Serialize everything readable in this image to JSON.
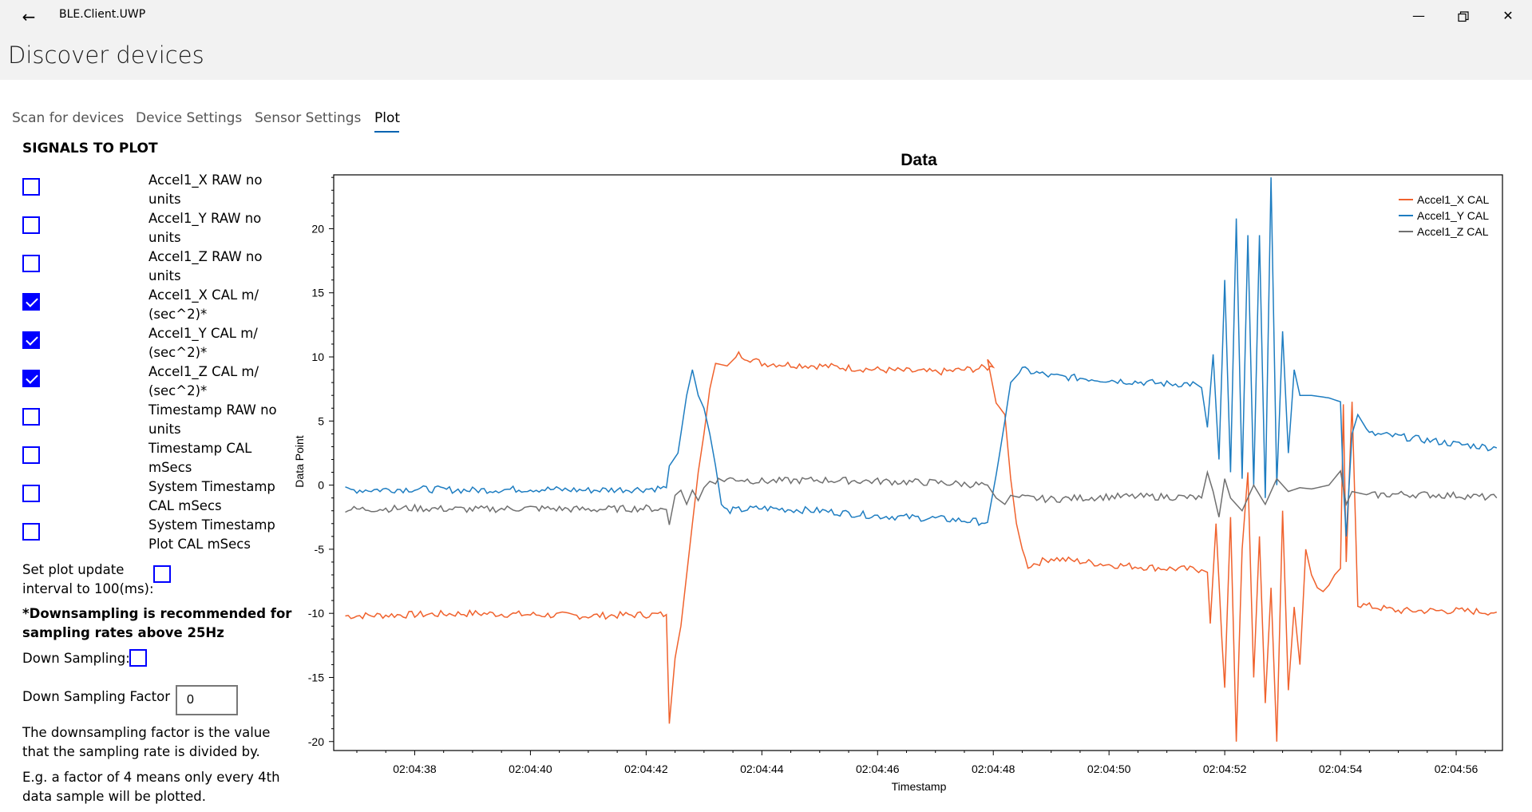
{
  "window": {
    "title": "BLE.Client.UWP",
    "back_icon": "back-arrow-icon"
  },
  "page_title": "Discover devices",
  "tabs": [
    {
      "label": "Scan for devices",
      "active": false
    },
    {
      "label": "Device Settings",
      "active": false
    },
    {
      "label": "Sensor Settings",
      "active": false
    },
    {
      "label": "Plot",
      "active": true
    }
  ],
  "sidebar": {
    "heading": "SIGNALS TO PLOT",
    "signals": [
      {
        "line1": "Accel1_X RAW no",
        "line2": "units",
        "checked": false
      },
      {
        "line1": "Accel1_Y RAW no",
        "line2": "units",
        "checked": false
      },
      {
        "line1": "Accel1_Z RAW no",
        "line2": "units",
        "checked": false
      },
      {
        "line1": "Accel1_X CAL m/",
        "line2": "(sec^2)*",
        "checked": true
      },
      {
        "line1": "Accel1_Y CAL m/",
        "line2": "(sec^2)*",
        "checked": true
      },
      {
        "line1": "Accel1_Z CAL m/",
        "line2": "(sec^2)*",
        "checked": true
      },
      {
        "line1": "Timestamp RAW no",
        "line2": "units",
        "checked": false
      },
      {
        "line1": "Timestamp CAL",
        "line2": "mSecs",
        "checked": false
      },
      {
        "line1": "System Timestamp",
        "line2": "CAL mSecs",
        "checked": false
      },
      {
        "line1": "System Timestamp",
        "line2": "Plot CAL mSecs",
        "checked": false
      }
    ],
    "interval_line1": "Set plot update",
    "interval_line2": "interval to 100(ms):",
    "interval_checked": false,
    "warning_line1": "*Downsampling is recommended for",
    "warning_line2": "sampling rates above 25Hz",
    "downsampling_label": "Down Sampling:",
    "downsampling_checked": false,
    "factor_label": "Down Sampling Factor :",
    "factor_value": "0",
    "info1_line1": "The downsampling factor is the value",
    "info1_line2": "that the sampling rate is divided by.",
    "info2_line1": "E.g. a factor of 4 means only every 4th",
    "info2_line2": "data sample will be plotted."
  },
  "chart_data": {
    "type": "line",
    "title": "Data",
    "xlabel": "Timestamp",
    "ylabel": "Data Point",
    "x_range_seconds": [
      36.6,
      56.8
    ],
    "ylim": [
      -20.7,
      24.2
    ],
    "yticks": [
      -20,
      -15,
      -10,
      -5,
      0,
      5,
      10,
      15,
      20
    ],
    "xticks": [
      "02:04:38",
      "02:04:40",
      "02:04:42",
      "02:04:44",
      "02:04:46",
      "02:04:48",
      "02:04:50",
      "02:04:52",
      "02:04:54",
      "02:04:56"
    ],
    "legend_position": "top-right",
    "series": [
      {
        "name": "Accel1_X CAL",
        "color": "#f0622d",
        "points": [
          [
            36.8,
            -10.2
          ],
          [
            38,
            -10.1
          ],
          [
            39,
            -10.0
          ],
          [
            40,
            -10.1
          ],
          [
            41,
            -10.2
          ],
          [
            42,
            -10.1
          ],
          [
            42.35,
            -10.1
          ],
          [
            42.4,
            -18.6
          ],
          [
            42.5,
            -13.5
          ],
          [
            42.6,
            -11.0
          ],
          [
            42.7,
            -7.0
          ],
          [
            42.8,
            -3.0
          ],
          [
            42.9,
            1.0
          ],
          [
            43.0,
            4.0
          ],
          [
            43.1,
            7.5
          ],
          [
            43.2,
            9.5
          ],
          [
            43.4,
            9.3
          ],
          [
            43.6,
            10.2
          ],
          [
            44,
            9.5
          ],
          [
            45,
            9.3
          ],
          [
            46,
            9.0
          ],
          [
            47,
            8.8
          ],
          [
            48,
            9.2
          ],
          [
            47.9,
            9.8
          ],
          [
            48.05,
            6.4
          ],
          [
            48.2,
            5.5
          ],
          [
            48.3,
            0.5
          ],
          [
            48.4,
            -3.0
          ],
          [
            48.5,
            -5.0
          ],
          [
            48.6,
            -6.3
          ],
          [
            49,
            -5.7
          ],
          [
            50,
            -6.2
          ],
          [
            51,
            -6.5
          ],
          [
            51.6,
            -6.6
          ],
          [
            51.7,
            -6.8
          ],
          [
            51.75,
            -10.8
          ],
          [
            51.85,
            -3.0
          ],
          [
            51.95,
            -12.0
          ],
          [
            52.0,
            -15.8
          ],
          [
            52.1,
            -2.5
          ],
          [
            52.2,
            -20.0
          ],
          [
            52.3,
            -5.0
          ],
          [
            52.4,
            1.0
          ],
          [
            52.5,
            -15.0
          ],
          [
            52.6,
            -4.0
          ],
          [
            52.7,
            -17.0
          ],
          [
            52.8,
            -8.0
          ],
          [
            52.9,
            -20.0
          ],
          [
            53.0,
            -2.0
          ],
          [
            53.1,
            -16.0
          ],
          [
            53.2,
            -9.5
          ],
          [
            53.3,
            -14.0
          ],
          [
            53.4,
            -5.0
          ],
          [
            53.5,
            -7.0
          ],
          [
            53.6,
            -8.0
          ],
          [
            53.7,
            -8.3
          ],
          [
            53.8,
            -7.8
          ],
          [
            53.9,
            -7.0
          ],
          [
            54.0,
            -6.5
          ],
          [
            54.05,
            6.3
          ],
          [
            54.1,
            -6.0
          ],
          [
            54.2,
            6.5
          ],
          [
            54.3,
            -9.3
          ],
          [
            55,
            -9.8
          ],
          [
            56,
            -9.8
          ],
          [
            56.7,
            -9.9
          ]
        ]
      },
      {
        "name": "Accel1_Y CAL",
        "color": "#1e7dc1",
        "points": [
          [
            36.8,
            -0.4
          ],
          [
            38,
            -0.3
          ],
          [
            39,
            -0.4
          ],
          [
            40,
            -0.3
          ],
          [
            41,
            -0.4
          ],
          [
            42,
            -0.3
          ],
          [
            42.35,
            -0.2
          ],
          [
            42.4,
            1.5
          ],
          [
            42.55,
            2.5
          ],
          [
            42.7,
            7.0
          ],
          [
            42.8,
            9.0
          ],
          [
            42.9,
            7.0
          ],
          [
            43.0,
            6.0
          ],
          [
            43.1,
            4.0
          ],
          [
            43.2,
            1.5
          ],
          [
            43.3,
            -1.5
          ],
          [
            43.4,
            -2.0
          ],
          [
            44,
            -1.8
          ],
          [
            45,
            -2.0
          ],
          [
            46,
            -2.4
          ],
          [
            47,
            -2.6
          ],
          [
            47.9,
            -2.9
          ],
          [
            48.05,
            0.8
          ],
          [
            48.2,
            5.0
          ],
          [
            48.3,
            8.0
          ],
          [
            48.5,
            9.0
          ],
          [
            49,
            8.5
          ],
          [
            50,
            8.2
          ],
          [
            51,
            7.9
          ],
          [
            51.5,
            7.9
          ],
          [
            51.6,
            7.6
          ],
          [
            51.7,
            4.5
          ],
          [
            51.8,
            10.2
          ],
          [
            51.9,
            2.0
          ],
          [
            52.0,
            16.0
          ],
          [
            52.1,
            1.0
          ],
          [
            52.2,
            20.8
          ],
          [
            52.3,
            0.5
          ],
          [
            52.4,
            19.5
          ],
          [
            52.5,
            0.0
          ],
          [
            52.6,
            19.5
          ],
          [
            52.7,
            -1.0
          ],
          [
            52.8,
            24.0
          ],
          [
            52.9,
            0.0
          ],
          [
            53.0,
            12.0
          ],
          [
            53.1,
            2.5
          ],
          [
            53.2,
            9.0
          ],
          [
            53.3,
            7.0
          ],
          [
            53.5,
            7.0
          ],
          [
            53.8,
            6.8
          ],
          [
            54.0,
            6.5
          ],
          [
            54.05,
            0.0
          ],
          [
            54.1,
            -4.0
          ],
          [
            54.2,
            4.0
          ],
          [
            54.3,
            5.5
          ],
          [
            54.5,
            4.0
          ],
          [
            55,
            3.8
          ],
          [
            56,
            3.2
          ],
          [
            56.7,
            2.9
          ]
        ]
      },
      {
        "name": "Accel1_Z CAL",
        "color": "#707070",
        "points": [
          [
            36.8,
            -1.9
          ],
          [
            38,
            -1.8
          ],
          [
            39,
            -1.9
          ],
          [
            40,
            -1.8
          ],
          [
            41,
            -1.9
          ],
          [
            42,
            -1.8
          ],
          [
            42.35,
            -1.9
          ],
          [
            42.4,
            -3.1
          ],
          [
            42.5,
            -0.8
          ],
          [
            42.6,
            -0.4
          ],
          [
            42.7,
            -1.5
          ],
          [
            42.8,
            -0.4
          ],
          [
            42.9,
            -1.2
          ],
          [
            43.0,
            -0.2
          ],
          [
            43.1,
            0.3
          ],
          [
            43.5,
            0.5
          ],
          [
            44,
            0.3
          ],
          [
            45,
            0.4
          ],
          [
            46,
            0.3
          ],
          [
            47,
            0.2
          ],
          [
            47.9,
            0.0
          ],
          [
            48.05,
            -1.0
          ],
          [
            48.2,
            -1.5
          ],
          [
            48.3,
            -0.8
          ],
          [
            48.5,
            -1.0
          ],
          [
            49,
            -1.1
          ],
          [
            50,
            -0.9
          ],
          [
            51,
            -0.9
          ],
          [
            51.6,
            -1.0
          ],
          [
            51.7,
            1.0
          ],
          [
            51.8,
            -0.5
          ],
          [
            51.9,
            -2.5
          ],
          [
            52.0,
            0.5
          ],
          [
            52.1,
            -1.0
          ],
          [
            52.3,
            -2.0
          ],
          [
            52.5,
            0.0
          ],
          [
            52.7,
            -1.5
          ],
          [
            52.9,
            0.5
          ],
          [
            53.1,
            -0.5
          ],
          [
            53.3,
            -0.2
          ],
          [
            53.5,
            -0.3
          ],
          [
            53.8,
            0.0
          ],
          [
            54.0,
            1.1
          ],
          [
            54.1,
            -1.5
          ],
          [
            54.2,
            -0.5
          ],
          [
            54.5,
            -0.8
          ],
          [
            55,
            -0.7
          ],
          [
            56,
            -0.8
          ],
          [
            56.7,
            -1.0
          ]
        ]
      }
    ]
  }
}
